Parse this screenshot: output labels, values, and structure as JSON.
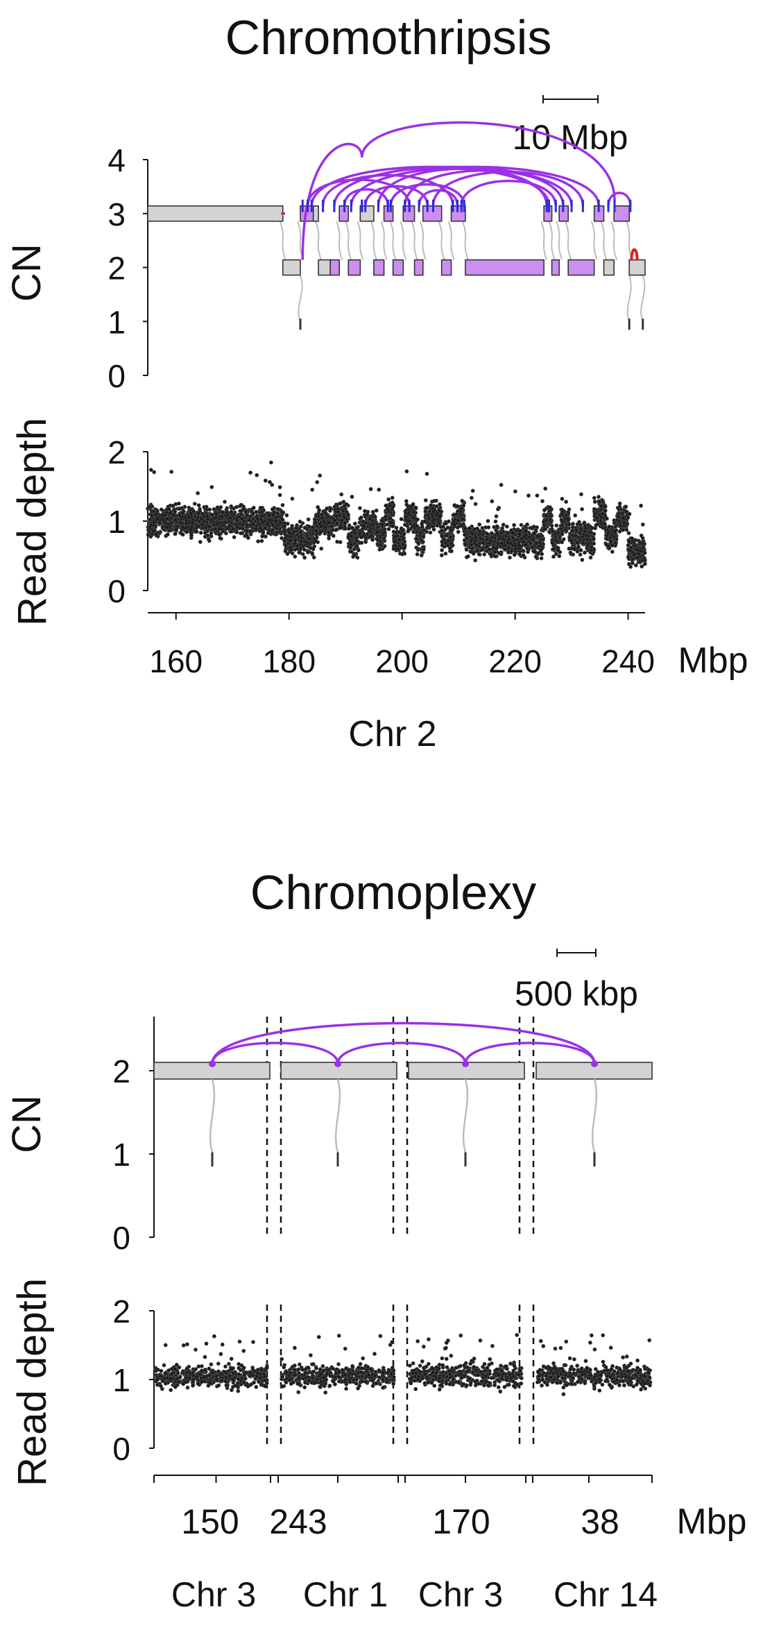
{
  "chart_data": [
    {
      "type": "scatter",
      "title": "Chromothripsis",
      "scale_bar_label": "10 Mbp",
      "cn_ylabel": "CN",
      "cn_yticks": [
        0,
        1,
        2,
        3,
        4
      ],
      "cn_ylim": [
        0,
        4
      ],
      "rd_ylabel": "Read depth",
      "rd_yticks": [
        0,
        1,
        2
      ],
      "rd_ylim": [
        0,
        2
      ],
      "x_unit": "Mbp",
      "xticks": [
        160,
        180,
        200,
        220,
        240
      ],
      "xlim": [
        155,
        243
      ],
      "chromosome_label": "Chr 2",
      "colors": {
        "segment_gray": "#d3d3d3",
        "segment_purple": "#cc8ff0",
        "arc_purple": "#9b30e6",
        "arc_red": "#e02020",
        "arc_blue": "#2a2ae0",
        "junction_gray": "#bcbcbc"
      },
      "cn_segments": [
        {
          "start": 155.0,
          "end": 178.9,
          "cn": 3,
          "color": "gray"
        },
        {
          "start": 178.9,
          "end": 182.0,
          "cn": 2,
          "color": "gray"
        },
        {
          "start": 182.0,
          "end": 184.3,
          "cn": 3,
          "color": "purple"
        },
        {
          "start": 184.3,
          "end": 185.2,
          "cn": 3,
          "color": "gray"
        },
        {
          "start": 185.2,
          "end": 187.3,
          "cn": 2,
          "color": "gray"
        },
        {
          "start": 187.3,
          "end": 188.9,
          "cn": 2,
          "color": "purple"
        },
        {
          "start": 188.9,
          "end": 190.5,
          "cn": 3,
          "color": "purple"
        },
        {
          "start": 190.5,
          "end": 192.6,
          "cn": 2,
          "color": "purple"
        },
        {
          "start": 192.6,
          "end": 195.0,
          "cn": 3,
          "color": "gray"
        },
        {
          "start": 195.0,
          "end": 196.8,
          "cn": 2,
          "color": "purple"
        },
        {
          "start": 196.8,
          "end": 198.4,
          "cn": 3,
          "color": "purple"
        },
        {
          "start": 198.4,
          "end": 200.2,
          "cn": 2,
          "color": "purple"
        },
        {
          "start": 200.2,
          "end": 202.2,
          "cn": 3,
          "color": "purple"
        },
        {
          "start": 202.2,
          "end": 203.7,
          "cn": 2,
          "color": "purple"
        },
        {
          "start": 203.7,
          "end": 207.0,
          "cn": 3,
          "color": "purple"
        },
        {
          "start": 207.0,
          "end": 208.7,
          "cn": 2,
          "color": "purple"
        },
        {
          "start": 208.7,
          "end": 211.2,
          "cn": 3,
          "color": "purple"
        },
        {
          "start": 211.2,
          "end": 225.1,
          "cn": 2,
          "color": "purple"
        },
        {
          "start": 225.1,
          "end": 226.5,
          "cn": 3,
          "color": "purple"
        },
        {
          "start": 226.5,
          "end": 227.8,
          "cn": 2,
          "color": "purple"
        },
        {
          "start": 227.8,
          "end": 229.4,
          "cn": 3,
          "color": "purple"
        },
        {
          "start": 229.4,
          "end": 234.0,
          "cn": 2,
          "color": "purple"
        },
        {
          "start": 234.0,
          "end": 235.7,
          "cn": 3,
          "color": "purple"
        },
        {
          "start": 235.7,
          "end": 237.5,
          "cn": 2,
          "color": "gray"
        },
        {
          "start": 237.5,
          "end": 240.2,
          "cn": 3,
          "color": "purple"
        },
        {
          "start": 240.2,
          "end": 243.0,
          "cn": 2,
          "color": "gray"
        }
      ],
      "cn_drops": [
        {
          "pos": 182.0,
          "cn": 1
        },
        {
          "pos": 240.2,
          "cn": 1
        },
        {
          "pos": 242.6,
          "cn": 1
        }
      ],
      "arcs": [
        {
          "a": 182.4,
          "b": 192.9,
          "cn_a": 2,
          "cn_b": 3.9,
          "color": "purple"
        },
        {
          "a": 192.9,
          "b": 237.6,
          "cn_a": 3.9,
          "cn_b": 3.1,
          "color": "purple"
        },
        {
          "a": 183.3,
          "b": 201.3,
          "cn_a": 3,
          "cn_b": 3,
          "color": "purple"
        },
        {
          "a": 184.0,
          "b": 226.0,
          "cn_a": 3,
          "cn_b": 3,
          "color": "purple"
        },
        {
          "a": 186.0,
          "b": 209.0,
          "cn_a": 3,
          "cn_b": 3,
          "color": "purple"
        },
        {
          "a": 188.0,
          "b": 230.0,
          "cn_a": 3,
          "cn_b": 3,
          "color": "purple"
        },
        {
          "a": 189.8,
          "b": 197.5,
          "cn_a": 3,
          "cn_b": 3,
          "color": "purple"
        },
        {
          "a": 191.0,
          "b": 234.8,
          "cn_a": 3,
          "cn_b": 3,
          "color": "purple"
        },
        {
          "a": 193.5,
          "b": 204.5,
          "cn_a": 3,
          "cn_b": 3,
          "color": "purple"
        },
        {
          "a": 195.8,
          "b": 225.6,
          "cn_a": 3,
          "cn_b": 3,
          "color": "purple"
        },
        {
          "a": 198.0,
          "b": 211.0,
          "cn_a": 3,
          "cn_b": 3,
          "color": "purple"
        },
        {
          "a": 200.5,
          "b": 228.5,
          "cn_a": 3,
          "cn_b": 3,
          "color": "purple"
        },
        {
          "a": 203.0,
          "b": 209.8,
          "cn_a": 3,
          "cn_b": 3,
          "color": "purple"
        },
        {
          "a": 205.5,
          "b": 232.0,
          "cn_a": 3,
          "cn_b": 3,
          "color": "purple"
        },
        {
          "a": 210.5,
          "b": 227.2,
          "cn_a": 3,
          "cn_b": 3,
          "color": "purple"
        },
        {
          "a": 236.5,
          "b": 240.4,
          "cn_a": 3,
          "cn_b": 3,
          "color": "purple"
        },
        {
          "a": 240.6,
          "b": 241.6,
          "cn_a": 2,
          "cn_b": 2,
          "color": "red"
        }
      ],
      "rd_segments": [
        {
          "start": 155.0,
          "end": 179.0,
          "mean": 1.0
        },
        {
          "start": 179.0,
          "end": 182.0,
          "mean": 0.75
        },
        {
          "start": 182.0,
          "end": 184.5,
          "mean": 0.75
        },
        {
          "start": 184.5,
          "end": 188.0,
          "mean": 0.95
        },
        {
          "start": 188.0,
          "end": 190.5,
          "mean": 1.05
        },
        {
          "start": 190.5,
          "end": 192.5,
          "mean": 0.75
        },
        {
          "start": 192.5,
          "end": 195.5,
          "mean": 0.95
        },
        {
          "start": 195.5,
          "end": 197.0,
          "mean": 0.8
        },
        {
          "start": 197.0,
          "end": 198.5,
          "mean": 1.1
        },
        {
          "start": 198.5,
          "end": 200.5,
          "mean": 0.7
        },
        {
          "start": 200.5,
          "end": 202.5,
          "mean": 1.05
        },
        {
          "start": 202.5,
          "end": 204.0,
          "mean": 0.75
        },
        {
          "start": 204.0,
          "end": 207.0,
          "mean": 1.05
        },
        {
          "start": 207.0,
          "end": 209.0,
          "mean": 0.75
        },
        {
          "start": 209.0,
          "end": 211.0,
          "mean": 1.05
        },
        {
          "start": 211.0,
          "end": 225.0,
          "mean": 0.72
        },
        {
          "start": 225.0,
          "end": 226.5,
          "mean": 1.05
        },
        {
          "start": 226.5,
          "end": 228.0,
          "mean": 0.72
        },
        {
          "start": 228.0,
          "end": 229.5,
          "mean": 1.0
        },
        {
          "start": 229.5,
          "end": 234.0,
          "mean": 0.75
        },
        {
          "start": 234.0,
          "end": 236.0,
          "mean": 1.1
        },
        {
          "start": 236.0,
          "end": 238.0,
          "mean": 0.8
        },
        {
          "start": 238.0,
          "end": 240.0,
          "mean": 1.05
        },
        {
          "start": 240.0,
          "end": 243.0,
          "mean": 0.55
        }
      ]
    },
    {
      "type": "scatter",
      "title": "Chromoplexy",
      "scale_bar_label": "500 kbp",
      "cn_ylabel": "CN",
      "cn_yticks": [
        0,
        1,
        2
      ],
      "cn_ylim": [
        0,
        2.5
      ],
      "rd_ylabel": "Read depth",
      "rd_yticks": [
        0,
        1,
        2
      ],
      "rd_ylim": [
        0,
        2
      ],
      "x_unit": "Mbp",
      "colors": {
        "segment_gray": "#d3d3d3",
        "arc_purple": "#9b30e6",
        "junction_gray": "#bcbcbc"
      },
      "panels": [
        {
          "chrom": "Chr 3",
          "tick_label": "150",
          "breakpoint_frac": 0.5,
          "cn": 2
        },
        {
          "chrom": "Chr 1",
          "tick_label": "243",
          "breakpoint_frac": 0.5,
          "cn": 2
        },
        {
          "chrom": "Chr 3",
          "tick_label": "170",
          "breakpoint_frac": 0.5,
          "cn": 2
        },
        {
          "chrom": "Chr 14",
          "tick_label": "38",
          "breakpoint_frac": 0.5,
          "cn": 2
        }
      ],
      "arcs": [
        {
          "from_panel": 0,
          "to_panel": 1
        },
        {
          "from_panel": 1,
          "to_panel": 2
        },
        {
          "from_panel": 2,
          "to_panel": 3
        },
        {
          "from_panel": 0,
          "to_panel": 3
        }
      ],
      "rd_mean": 1.05
    }
  ]
}
